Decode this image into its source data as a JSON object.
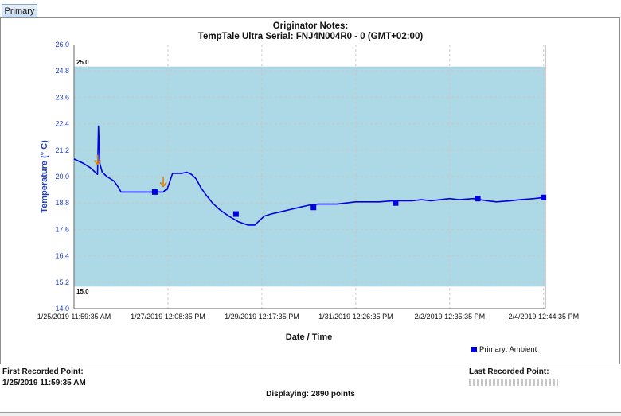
{
  "tab": {
    "label": "Primary"
  },
  "chart_data": {
    "type": "line",
    "title": "Originator Notes:",
    "subtitle": "TempTale Ultra   Serial: FNJ4N004R0 - 0   (GMT+02:00)",
    "xlabel": "Date / Time",
    "ylabel": "Temperature (° C)",
    "ylim": [
      14.0,
      26.0
    ],
    "y_ticks": [
      "26.0",
      "24.8",
      "23.6",
      "22.4",
      "21.2",
      "20.0",
      "18.8",
      "17.6",
      "16.4",
      "15.2",
      "14.0"
    ],
    "x_ticks": [
      "1/25/2019 11:59:35 AM",
      "1/27/2019 12:08:35 PM",
      "1/29/2019 12:17:35 PM",
      "1/31/2019 12:26:35 PM",
      "2/2/2019 12:35:35 PM",
      "2/4/2019 12:44:35 PM"
    ],
    "xlim_days": [
      0,
      10.04
    ],
    "upper_limit": {
      "value": 25.0,
      "label": "25.0"
    },
    "lower_limit": {
      "value": 15.0,
      "label": "15.0"
    },
    "grid": true,
    "legend_position": "bottom-right",
    "series": [
      {
        "name": "Primary: Ambient",
        "color": "#0000e0",
        "x_days": [
          0,
          0.2,
          0.35,
          0.45,
          0.5,
          0.52,
          0.55,
          0.6,
          0.7,
          0.85,
          0.95,
          1.0,
          1.2,
          1.5,
          1.8,
          1.85,
          1.9,
          1.95,
          1.98,
          2.1,
          2.3,
          2.4,
          2.5,
          2.6,
          2.7,
          2.8,
          2.95,
          3.1,
          3.3,
          3.5,
          3.7,
          3.85,
          3.95,
          4.05,
          4.2,
          4.4,
          4.6,
          4.8,
          5.0,
          5.2,
          5.4,
          5.6,
          5.8,
          6.0,
          6.2,
          6.5,
          6.8,
          7.0,
          7.2,
          7.4,
          7.6,
          7.8,
          8.0,
          8.2,
          8.5,
          8.8,
          9.0,
          9.3,
          9.5,
          9.8,
          10.0
        ],
        "y": [
          20.8,
          20.6,
          20.4,
          20.2,
          20.1,
          22.3,
          20.6,
          20.2,
          20.0,
          19.8,
          19.5,
          19.3,
          19.3,
          19.3,
          19.3,
          19.3,
          19.3,
          19.4,
          19.4,
          20.15,
          20.15,
          20.2,
          20.1,
          19.9,
          19.5,
          19.2,
          18.8,
          18.5,
          18.2,
          17.95,
          17.8,
          17.8,
          18.0,
          18.2,
          18.3,
          18.4,
          18.5,
          18.6,
          18.7,
          18.75,
          18.75,
          18.75,
          18.8,
          18.85,
          18.85,
          18.85,
          18.9,
          18.9,
          18.9,
          18.95,
          18.9,
          18.95,
          19.0,
          18.95,
          19.0,
          18.9,
          18.85,
          18.9,
          18.95,
          19.0,
          19.05
        ],
        "markers": [
          {
            "x": 1.72,
            "y": 19.3
          },
          {
            "x": 3.45,
            "y": 18.3
          },
          {
            "x": 5.1,
            "y": 18.6
          },
          {
            "x": 6.85,
            "y": 18.8
          },
          {
            "x": 8.6,
            "y": 19.0
          },
          {
            "x": 10.0,
            "y": 19.05
          }
        ],
        "annotation_arrows": [
          {
            "x": 0.5,
            "y": 20.7
          },
          {
            "x": 1.9,
            "y": 19.7
          }
        ]
      }
    ]
  },
  "footer": {
    "first_label": "First Recorded Point:",
    "first_value": "1/25/2019 11:59:35 AM",
    "displaying": "Displaying: 2890 points",
    "last_label": "Last Recorded Point:"
  },
  "colors": {
    "band": "#add8e6",
    "line": "#0000e0",
    "axis_text": "#1f3ec8",
    "arrow": "#e07b00"
  }
}
